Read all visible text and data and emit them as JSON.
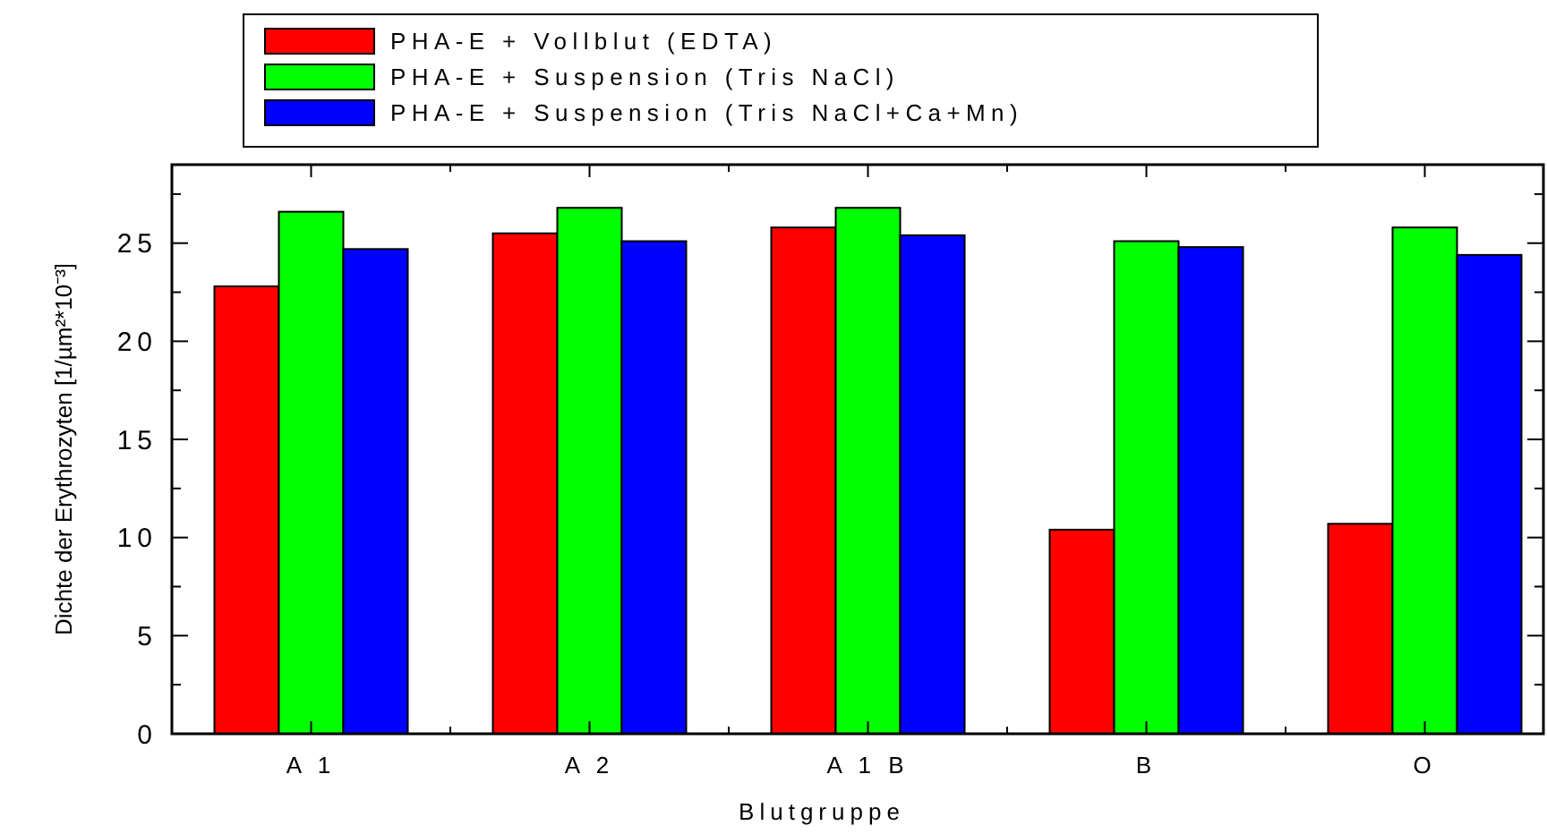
{
  "chart_data": {
    "type": "bar",
    "xlabel": "Blutgruppe",
    "ylabel": "Dichte der Erythrozyten [1/µm²*10⁻³]",
    "categories": [
      "A 1",
      "A 2",
      "A 1 B",
      "B",
      "O"
    ],
    "series": [
      {
        "name": "PHA-E + Vollblut (EDTA)",
        "color": "#ff0000",
        "values": [
          22.8,
          25.5,
          25.8,
          10.4,
          10.7
        ]
      },
      {
        "name": "PHA-E + Suspension (Tris NaCl)",
        "color": "#00ff00",
        "values": [
          26.6,
          26.8,
          26.8,
          25.1,
          25.8
        ]
      },
      {
        "name": "PHA-E + Suspension (Tris NaCl+Ca+Mn)",
        "color": "#0000ff",
        "values": [
          24.7,
          25.1,
          25.4,
          24.8,
          24.4
        ]
      }
    ],
    "ylim": [
      0,
      29
    ],
    "yticks": [
      0,
      {
        "value": 2.5,
        "label": null
      },
      5,
      {
        "value": 7.5,
        "label": null
      },
      10,
      {
        "value": 12.5,
        "label": null
      },
      15,
      {
        "value": 17.5,
        "label": null
      },
      20,
      {
        "value": 22.5,
        "label": null
      },
      25,
      {
        "value": 27.5,
        "label": null
      }
    ],
    "grid": false,
    "legend": "top"
  }
}
